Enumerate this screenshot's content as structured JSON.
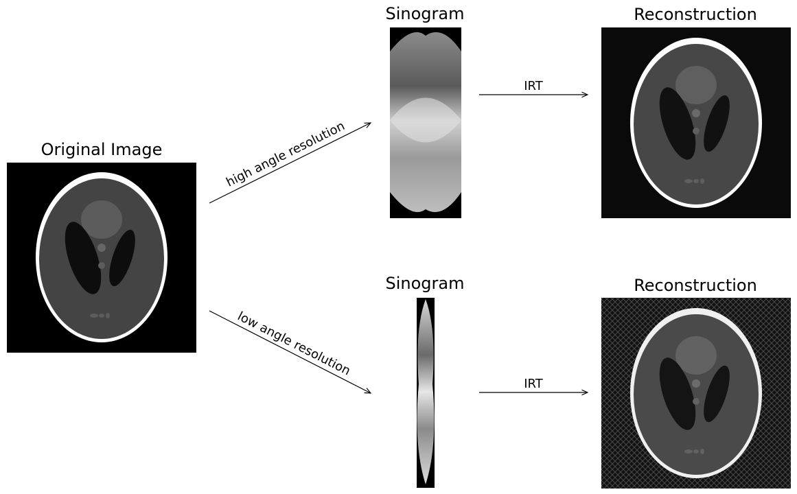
{
  "original": {
    "title": "Original Image"
  },
  "high": {
    "sinogram_title": "Sinogram",
    "reconstruction_title": "Reconstruction",
    "arrow_label": "high angle resolution",
    "irt_label": "IRT"
  },
  "low": {
    "sinogram_title": "Sinogram",
    "reconstruction_title": "Reconstruction",
    "arrow_label": "low angle resolution",
    "irt_label": "IRT"
  }
}
